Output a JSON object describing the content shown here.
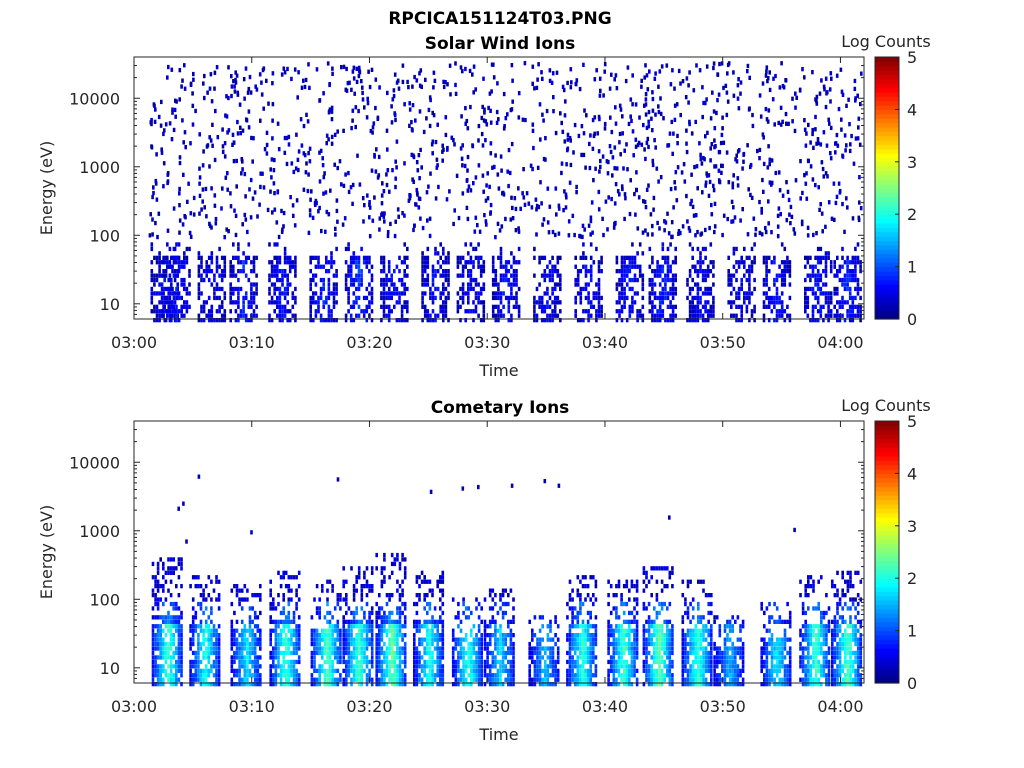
{
  "figure": {
    "title": "RPCICA151124T03.PNG"
  },
  "colormap": [
    "#00007f",
    "#0000ff",
    "#007fff",
    "#00ffff",
    "#7fff7f",
    "#ffff00",
    "#ff7f00",
    "#ff0000",
    "#7f0000"
  ],
  "chart_data": [
    {
      "type": "heatmap",
      "title": "Solar Wind Ions",
      "xlabel": "Time",
      "ylabel": "Energy (eV)",
      "xlim": [
        0,
        62
      ],
      "ylim": [
        6,
        40000
      ],
      "yscale": "log",
      "xticks": [
        0,
        10,
        20,
        30,
        40,
        50,
        60
      ],
      "xtick_labels": [
        "03:00",
        "03:10",
        "03:20",
        "03:30",
        "03:40",
        "03:50",
        "04:00"
      ],
      "yticks": [
        10,
        100,
        1000,
        10000
      ],
      "ytick_labels": [
        "10",
        "100",
        "1000",
        "10000"
      ],
      "colorbar": {
        "label": "Log Counts",
        "range": [
          0,
          5
        ],
        "ticks": [
          0,
          1,
          2,
          3,
          4,
          5
        ],
        "tick_labels": [
          "0",
          "1",
          "2",
          "3",
          "4",
          "5"
        ]
      },
      "bursts": [
        {
          "t": 2.5,
          "level": 0.4
        },
        {
          "t": 3.5,
          "level": 0.5
        },
        {
          "t": 6.5,
          "level": 0.4
        },
        {
          "t": 9.2,
          "level": 0.6
        },
        {
          "t": 12.5,
          "level": 0.5
        },
        {
          "t": 16.0,
          "level": 0.6
        },
        {
          "t": 19.0,
          "level": 0.7
        },
        {
          "t": 22.0,
          "level": 0.5
        },
        {
          "t": 25.5,
          "level": 0.5
        },
        {
          "t": 28.5,
          "level": 0.4
        },
        {
          "t": 31.5,
          "level": 0.5
        },
        {
          "t": 35.0,
          "level": 0.4
        },
        {
          "t": 38.5,
          "level": 0.5
        },
        {
          "t": 42.0,
          "level": 0.5
        },
        {
          "t": 44.8,
          "level": 0.6
        },
        {
          "t": 48.0,
          "level": 0.4
        },
        {
          "t": 51.5,
          "level": 0.4
        },
        {
          "t": 54.5,
          "level": 0.5
        },
        {
          "t": 58.0,
          "level": 0.5
        },
        {
          "t": 60.5,
          "level": 0.6
        }
      ],
      "background_scatter": true
    },
    {
      "type": "heatmap",
      "title": "Cometary Ions",
      "xlabel": "Time",
      "ylabel": "Energy (eV)",
      "xlim": [
        0,
        62
      ],
      "ylim": [
        6,
        40000
      ],
      "yscale": "log",
      "xticks": [
        0,
        10,
        20,
        30,
        40,
        50,
        60
      ],
      "xtick_labels": [
        "03:00",
        "03:10",
        "03:20",
        "03:30",
        "03:40",
        "03:50",
        "04:00"
      ],
      "yticks": [
        10,
        100,
        1000,
        10000
      ],
      "ytick_labels": [
        "10",
        "100",
        "1000",
        "10000"
      ],
      "colorbar": {
        "label": "Log Counts",
        "range": [
          0,
          5
        ],
        "ticks": [
          0,
          1,
          2,
          3,
          4,
          5
        ],
        "tick_labels": [
          "0",
          "1",
          "2",
          "3",
          "4",
          "5"
        ]
      },
      "bursts": [
        {
          "t": 2.8,
          "level": 2.0,
          "top": 450
        },
        {
          "t": 6.0,
          "level": 1.8,
          "top": 250
        },
        {
          "t": 9.5,
          "level": 1.6,
          "top": 180
        },
        {
          "t": 12.8,
          "level": 2.0,
          "top": 300
        },
        {
          "t": 16.3,
          "level": 2.1,
          "top": 200
        },
        {
          "t": 19.0,
          "level": 2.0,
          "top": 350
        },
        {
          "t": 21.8,
          "level": 2.2,
          "top": 500
        },
        {
          "t": 25.0,
          "level": 1.8,
          "top": 300
        },
        {
          "t": 28.3,
          "level": 1.9,
          "top": 120
        },
        {
          "t": 31.0,
          "level": 1.5,
          "top": 150
        },
        {
          "t": 34.8,
          "level": 1.4,
          "top": 60
        },
        {
          "t": 38.0,
          "level": 1.9,
          "top": 250
        },
        {
          "t": 41.5,
          "level": 2.0,
          "top": 200
        },
        {
          "t": 44.5,
          "level": 2.2,
          "top": 350
        },
        {
          "t": 47.8,
          "level": 2.0,
          "top": 200
        },
        {
          "t": 50.5,
          "level": 1.3,
          "top": 60
        },
        {
          "t": 54.5,
          "level": 1.6,
          "top": 100
        },
        {
          "t": 57.8,
          "level": 2.0,
          "top": 250
        },
        {
          "t": 60.5,
          "level": 2.1,
          "top": 300
        }
      ],
      "background_scatter": false
    }
  ]
}
